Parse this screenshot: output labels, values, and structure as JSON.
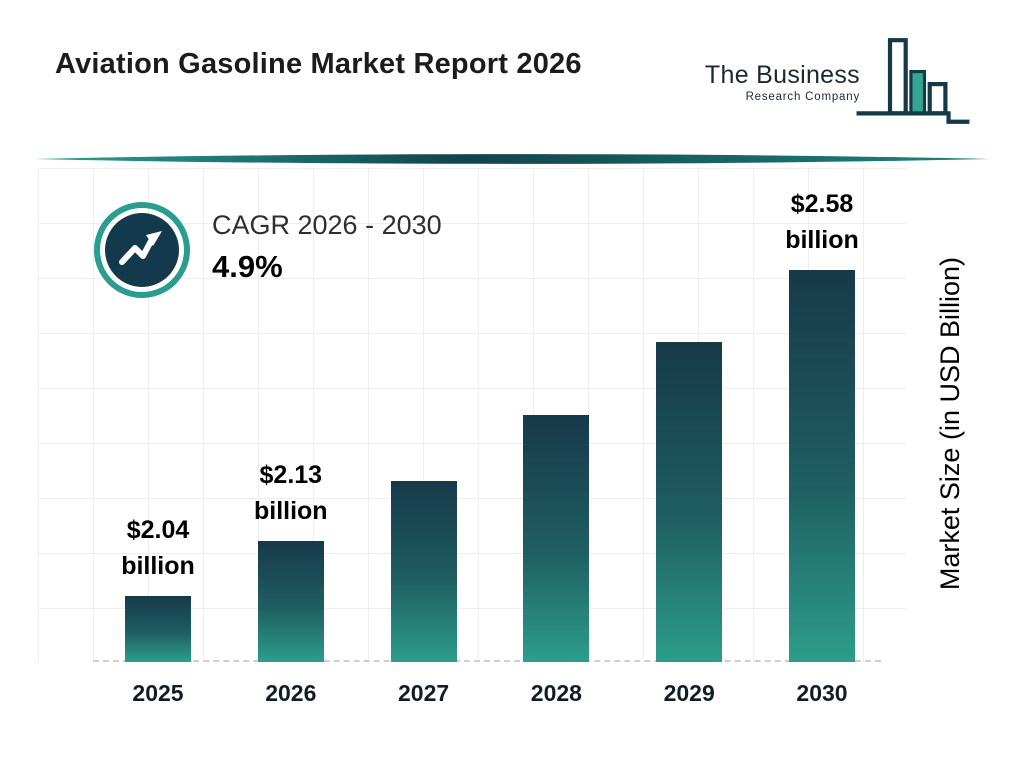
{
  "header": {
    "title": "Aviation Gasoline Market Report 2026",
    "logo": {
      "line1": "The Business",
      "line2": "Research Company"
    }
  },
  "cagr": {
    "label": "CAGR 2026 - 2030",
    "value": "4.9%"
  },
  "chart_data": {
    "type": "bar",
    "title": "Aviation Gasoline Market Report 2026",
    "categories": [
      "2025",
      "2026",
      "2027",
      "2028",
      "2029",
      "2030"
    ],
    "values": [
      2.04,
      2.13,
      2.23,
      2.34,
      2.46,
      2.58
    ],
    "value_labels": [
      {
        "amount": "$2.04",
        "unit": "billion"
      },
      {
        "amount": "$2.13",
        "unit": "billion"
      },
      null,
      null,
      null,
      {
        "amount": "$2.58",
        "unit": "billion"
      }
    ],
    "xlabel": "",
    "ylabel": "Market Size (in USD Billion)",
    "ylim": [
      1.93,
      2.58
    ],
    "grid": true,
    "legend": false
  },
  "colors": {
    "bar_gradient_top": "#17394a",
    "bar_gradient_bottom": "#2d9d8b",
    "accent_teal": "#2a9d8f",
    "navy": "#123a4c"
  }
}
